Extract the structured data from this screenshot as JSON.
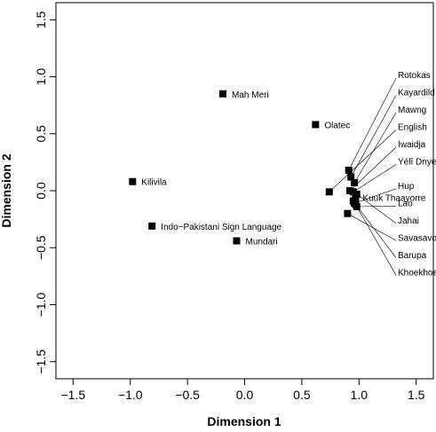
{
  "chart_data": {
    "type": "scatter",
    "title": "",
    "xlabel": "Dimension 1",
    "ylabel": "Dimension 2",
    "xlim": [
      -1.65,
      1.65
    ],
    "ylim": [
      -1.65,
      1.65
    ],
    "xticks": [
      "−1.5",
      "−1.0",
      "−0.5",
      "0.0",
      "0.5",
      "1.0",
      "1.5"
    ],
    "yticks": [
      "−1.5",
      "−1.0",
      "−0.5",
      "0.0",
      "0.5",
      "1.0",
      "1.5"
    ],
    "grid": false,
    "points": [
      {
        "label": "Mah Meri",
        "x": -0.19,
        "y": 0.85
      },
      {
        "label": "Olatec",
        "x": 0.62,
        "y": 0.58
      },
      {
        "label": "Kilivila",
        "x": -0.98,
        "y": 0.08
      },
      {
        "label": "Indo−Pakistani Sign Language",
        "x": -0.81,
        "y": -0.31
      },
      {
        "label": "Mundari",
        "x": -0.07,
        "y": -0.44
      },
      {
        "label": "Rotokas",
        "x": 0.91,
        "y": 0.18
      },
      {
        "label": "Kayardild",
        "x": 0.93,
        "y": 0.12
      },
      {
        "label": "Mawng",
        "x": 0.96,
        "y": 0.07
      },
      {
        "label": "English",
        "x": 0.74,
        "y": -0.01
      },
      {
        "label": "Iwaidja",
        "x": 0.92,
        "y": 0.0
      },
      {
        "label": "Yélî Dnye",
        "x": 0.95,
        "y": -0.01
      },
      {
        "label": "Kuuk Thaayorre",
        "x": 0.97,
        "y": -0.06
      },
      {
        "label": "Hup",
        "x": 0.96,
        "y": -0.11
      },
      {
        "label": "Lao",
        "x": 0.98,
        "y": -0.14
      },
      {
        "label": "Jahai",
        "x": 0.98,
        "y": -0.03
      },
      {
        "label": "Savasavo",
        "x": 0.9,
        "y": -0.2
      },
      {
        "label": "Barupa",
        "x": 0.95,
        "y": -0.09
      },
      {
        "label": "Khoekhoe",
        "x": 0.97,
        "y": -0.12
      }
    ]
  }
}
